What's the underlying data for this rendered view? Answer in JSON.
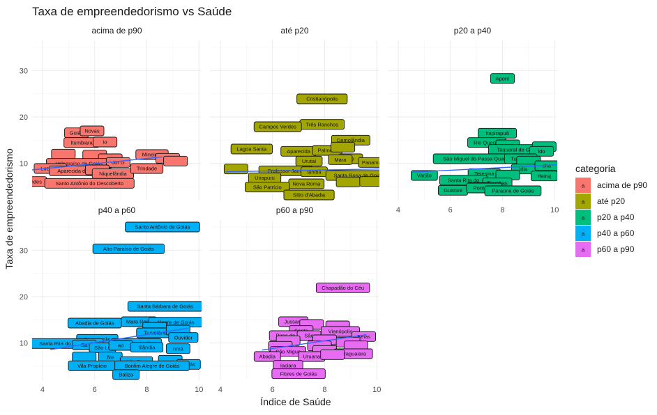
{
  "chart_data": {
    "type": "scatter",
    "title": "Taxa de empreendedorismo vs Saúde",
    "xlabel": "Índice de Saúde",
    "ylabel": "Taxa de empreendedorismo",
    "xlim": [
      3.6,
      10.1
    ],
    "ylim": [
      2.0,
      36.5
    ],
    "x_breaks": [
      4,
      6,
      8,
      10
    ],
    "y_breaks": [
      10,
      20,
      30
    ],
    "legend": {
      "title": "categoria",
      "position": "right",
      "key_glyph": "a",
      "entries": [
        "acima de p90",
        "até p20",
        "p20 a p40",
        "p40 a p60",
        "p60 a p90"
      ]
    },
    "colors": {
      "acima de p90": "#F8766D",
      "até p20": "#A3A500",
      "p20 a p40": "#00BF7D",
      "p40 a p60": "#00B0F6",
      "p60 a p90": "#E76BF3",
      "trend": "#3366FF"
    },
    "facets": [
      {
        "name": "acima de p90",
        "trend": [
          [
            3.6,
            8.6
          ],
          [
            8.6,
            11.4
          ]
        ],
        "points": [
          {
            "label": "Goiás",
            "x": 5.3,
            "y": 16.6
          },
          {
            "label": "Novas",
            "x": 5.9,
            "y": 17.0
          },
          {
            "label": "Itumbiara",
            "x": 5.5,
            "y": 14.5
          },
          {
            "label": "io",
            "x": 6.4,
            "y": 14.6
          },
          {
            "label": "",
            "x": 4.8,
            "y": 12.0
          },
          {
            "label": "",
            "x": 6.0,
            "y": 11.8
          },
          {
            "label": "",
            "x": 6.6,
            "y": 11.0
          },
          {
            "label": "Mineiros",
            "x": 8.2,
            "y": 11.9
          },
          {
            "label": "",
            "x": 8.8,
            "y": 11.1
          },
          {
            "label": "",
            "x": 9.1,
            "y": 10.5
          },
          {
            "label": "Valparaíso de Goiás",
            "x": 5.4,
            "y": 10.0
          },
          {
            "label": "dor G",
            "x": 6.9,
            "y": 10.2
          },
          {
            "label": "Luziânia",
            "x": 4.3,
            "y": 8.9
          },
          {
            "label": "Aparecida de Goiâ",
            "x": 5.4,
            "y": 8.4
          },
          {
            "label": "",
            "x": 6.1,
            "y": 8.6
          },
          {
            "label": "Niquelândia",
            "x": 6.7,
            "y": 7.8
          },
          {
            "label": "Trindade",
            "x": 8.0,
            "y": 8.9
          },
          {
            "label": "andes",
            "x": 3.7,
            "y": 6.1
          },
          {
            "label": "Santo Antônio do Descoberto",
            "x": 5.8,
            "y": 5.7
          }
        ]
      },
      {
        "name": "até p20",
        "trend": [
          [
            4.2,
            8.2
          ],
          [
            10.1,
            8.8
          ]
        ],
        "points": [
          {
            "label": "Cristianópolis",
            "x": 7.9,
            "y": 23.9
          },
          {
            "label": "Três Ranchos",
            "x": 7.9,
            "y": 18.4
          },
          {
            "label": "Campos Verdes",
            "x": 6.2,
            "y": 17.9
          },
          {
            "label": "Damolândia",
            "x": 9.0,
            "y": 15.0
          },
          {
            "label": "Lagoa Santa",
            "x": 5.2,
            "y": 13.1
          },
          {
            "label": "Aparecida",
            "x": 7.0,
            "y": 12.6
          },
          {
            "label": "Palmelo",
            "x": 8.1,
            "y": 12.8
          },
          {
            "label": "",
            "x": 8.7,
            "y": 13.5
          },
          {
            "label": "No",
            "x": 9.0,
            "y": 11.0
          },
          {
            "label": "Urutaí",
            "x": 7.4,
            "y": 10.5
          },
          {
            "label": "Mara",
            "x": 8.6,
            "y": 10.8
          },
          {
            "label": "Panamá",
            "x": 9.8,
            "y": 10.2
          },
          {
            "label": "Professor Jamil",
            "x": 6.5,
            "y": 8.4
          },
          {
            "label": "lândia",
            "x": 7.6,
            "y": 8.2
          },
          {
            "label": "Santa Rosa de Goiás",
            "x": 9.3,
            "y": 7.4
          },
          {
            "label": "Uirapuru",
            "x": 5.7,
            "y": 6.9
          },
          {
            "label": "Nova Roma",
            "x": 7.3,
            "y": 5.6
          },
          {
            "label": "São Patrício",
            "x": 5.8,
            "y": 4.9
          },
          {
            "label": "Sítio d'Abadia",
            "x": 7.4,
            "y": 3.2
          },
          {
            "label": "",
            "x": 4.6,
            "y": 8.8
          },
          {
            "label": "",
            "x": 8.9,
            "y": 6.0
          },
          {
            "label": "",
            "x": 9.8,
            "y": 6.1
          }
        ]
      },
      {
        "name": "p20 a p40",
        "trend": [
          [
            4.5,
            8.1
          ],
          [
            10.1,
            9.7
          ]
        ],
        "points": [
          {
            "label": "Aporé",
            "x": 8.0,
            "y": 28.3
          },
          {
            "label": "Itapirapuã",
            "x": 7.8,
            "y": 16.5
          },
          {
            "label": "Rio Quente",
            "x": 7.4,
            "y": 14.5
          },
          {
            "label": "",
            "x": 8.2,
            "y": 14.0
          },
          {
            "label": "Taquaral de Goiás",
            "x": 8.6,
            "y": 13.0
          },
          {
            "label": "",
            "x": 9.6,
            "y": 13.6
          },
          {
            "label": "ldo",
            "x": 9.5,
            "y": 12.6
          },
          {
            "label": "São Miguel do Passa Quatro",
            "x": 7.0,
            "y": 11.0
          },
          {
            "label": "Turvânia",
            "x": 8.7,
            "y": 11.0
          },
          {
            "label": "",
            "x": 9.0,
            "y": 10.5
          },
          {
            "label": "ldia",
            "x": 8.8,
            "y": 8.8
          },
          {
            "label": "chá",
            "x": 9.7,
            "y": 9.5
          },
          {
            "label": "Varjão",
            "x": 5.0,
            "y": 7.4
          },
          {
            "label": "Teresina",
            "x": 7.3,
            "y": 7.8
          },
          {
            "label": "",
            "x": 8.2,
            "y": 7.5
          },
          {
            "label": "Heiraj",
            "x": 9.6,
            "y": 7.3
          },
          {
            "label": "Santa Rita do",
            "x": 6.5,
            "y": 6.4
          },
          {
            "label": "Trombas",
            "x": 7.8,
            "y": 5.8
          },
          {
            "label": "",
            "x": 7.1,
            "y": 4.8
          },
          {
            "label": "Guarani",
            "x": 6.1,
            "y": 4.2
          },
          {
            "label": "Pontalina",
            "x": 7.3,
            "y": 4.7
          },
          {
            "label": "Paraúna de Goiás",
            "x": 8.4,
            "y": 4.1
          }
        ]
      },
      {
        "name": "p40 a p60",
        "trend": [
          [
            4.3,
            8.6
          ],
          [
            9.6,
            13.2
          ]
        ],
        "points": [
          {
            "label": "Santo Antônio de Goiás",
            "x": 8.6,
            "y": 35.0
          },
          {
            "label": "Alto Paraíso de Goiás",
            "x": 7.3,
            "y": 30.3
          },
          {
            "label": "Santa Bárbara de Goiás",
            "x": 8.7,
            "y": 17.9
          },
          {
            "label": "Abadia de Goiás",
            "x": 6.0,
            "y": 14.3
          },
          {
            "label": "Mara Rosa",
            "x": 7.7,
            "y": 14.6
          },
          {
            "label": "Alegre de Goiás",
            "x": 9.1,
            "y": 14.5
          },
          {
            "label": "",
            "x": 8.3,
            "y": 13.4
          },
          {
            "label": "Turvelândia",
            "x": 8.4,
            "y": 12.2
          },
          {
            "label": "",
            "x": 9.2,
            "y": 12.8
          },
          {
            "label": "Ouvidor",
            "x": 9.4,
            "y": 11.2
          },
          {
            "label": "Terezópolis",
            "x": 6.1,
            "y": 10.8
          },
          {
            "label": "Santa Rita do Araguaia",
            "x": 4.9,
            "y": 9.9
          },
          {
            "label": "Vicentinópolis",
            "x": 7.6,
            "y": 9.9
          },
          {
            "label": "Sa",
            "x": 5.6,
            "y": 9.6
          },
          {
            "label": "São Lu",
            "x": 6.3,
            "y": 9.0
          },
          {
            "label": "ao",
            "x": 7.0,
            "y": 9.5
          },
          {
            "label": "tilândia",
            "x": 8.0,
            "y": 9.1
          },
          {
            "label": "nmá",
            "x": 9.2,
            "y": 8.8
          },
          {
            "label": "",
            "x": 5.6,
            "y": 7.0
          },
          {
            "label": "No",
            "x": 6.6,
            "y": 7.0
          },
          {
            "label": "",
            "x": 8.9,
            "y": 6.3
          },
          {
            "label": "Vila Boa",
            "x": 7.6,
            "y": 6.0
          },
          {
            "label": "Goiás",
            "x": 9.6,
            "y": 5.4
          },
          {
            "label": "Vila Propício",
            "x": 5.9,
            "y": 5.1
          },
          {
            "label": "Bonfim Alegre de Goiás",
            "x": 8.2,
            "y": 5.1
          },
          {
            "label": "Baliza",
            "x": 7.2,
            "y": 3.2
          }
        ]
      },
      {
        "name": "p60 a p90",
        "trend": [
          [
            5.6,
            8.5
          ],
          [
            9.6,
            11.8
          ]
        ],
        "points": [
          {
            "label": "Chapadão do Céu",
            "x": 8.7,
            "y": 21.9
          },
          {
            "label": "Jussara",
            "x": 6.8,
            "y": 14.6
          },
          {
            "label": "",
            "x": 7.5,
            "y": 14.0
          },
          {
            "label": "",
            "x": 8.5,
            "y": 13.7
          },
          {
            "label": "Santa",
            "x": 7.1,
            "y": 12.7
          },
          {
            "label": "Vianópolis",
            "x": 8.6,
            "y": 12.5
          },
          {
            "label": "Pires do",
            "x": 6.5,
            "y": 11.6
          },
          {
            "label": "São",
            "x": 7.4,
            "y": 11.6
          },
          {
            "label": "Belas",
            "x": 9.5,
            "y": 11.4
          },
          {
            "label": "",
            "x": 6.6,
            "y": 10.5
          },
          {
            "label": "",
            "x": 8.0,
            "y": 10.7
          },
          {
            "label": "",
            "x": 8.9,
            "y": 10.2
          },
          {
            "label": "",
            "x": 6.3,
            "y": 9.3
          },
          {
            "label": "",
            "x": 7.8,
            "y": 9.4
          },
          {
            "label": "",
            "x": 9.2,
            "y": 9.4
          },
          {
            "label": "São Migue",
            "x": 6.6,
            "y": 8.2
          },
          {
            "label": "",
            "x": 8.0,
            "y": 8.4
          },
          {
            "label": "Araguaiara",
            "x": 9.1,
            "y": 7.7
          },
          {
            "label": "Abadia",
            "x": 5.8,
            "y": 7.1
          },
          {
            "label": "Uruana",
            "x": 7.5,
            "y": 7.1
          },
          {
            "label": "",
            "x": 8.3,
            "y": 7.5
          },
          {
            "label": "Iaciara",
            "x": 6.6,
            "y": 5.2
          },
          {
            "label": "Flores de Goiás",
            "x": 7.0,
            "y": 3.4
          }
        ]
      }
    ]
  }
}
